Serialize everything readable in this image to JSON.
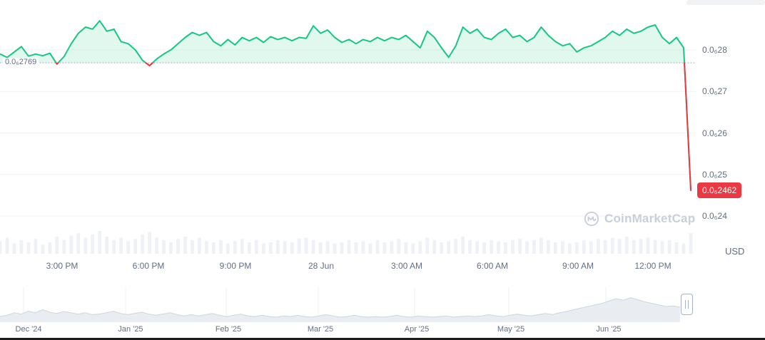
{
  "watermark": {
    "label": "CoinMarketCap"
  },
  "currency_label": "USD",
  "chart_data": {
    "type": "line",
    "title": "",
    "unit_note": "price values in 1e-8 USD (0.0₆28 = 0.00000028)",
    "legend": "off",
    "grid": "on",
    "colors": {
      "up": "#16c784",
      "down": "#ea3943",
      "area": "rgba(22,199,132,0.13)",
      "grid": "#f0f2f6",
      "axis_text": "#616e85",
      "volume": "#eef1f5",
      "nav_fill": "#e9edf2",
      "nav_stroke": "#cdd5e0",
      "prev_close_line": "#9aa4b5"
    },
    "main": {
      "prev_close": {
        "value": 27.69,
        "label": "0.0₆2769"
      },
      "last_price": {
        "value": 24.62,
        "label": "0.0₆2462"
      },
      "ylim": [
        23.8,
        29.2
      ],
      "y_ticks": [
        {
          "value": 28,
          "label": "0.0₆28"
        },
        {
          "value": 27,
          "label": "0.0₆27"
        },
        {
          "value": 26,
          "label": "0.0₆26"
        },
        {
          "value": 25,
          "label": "0.0₆25"
        },
        {
          "value": 24,
          "label": "0.0₆24"
        }
      ],
      "x_ticks": [
        "3:00 PM",
        "6:00 PM",
        "9:00 PM",
        "28 Jun",
        "3:00 AM",
        "6:00 AM",
        "9:00 AM",
        "12:00 PM"
      ],
      "prices": [
        27.9,
        27.82,
        27.95,
        28.08,
        27.85,
        27.9,
        27.86,
        27.92,
        27.66,
        27.84,
        28.15,
        28.4,
        28.55,
        28.5,
        28.7,
        28.45,
        28.5,
        28.2,
        28.15,
        28.0,
        27.75,
        27.62,
        27.78,
        27.9,
        28.0,
        28.15,
        28.3,
        28.42,
        28.35,
        28.42,
        28.2,
        28.1,
        28.25,
        28.12,
        28.3,
        28.22,
        28.3,
        28.18,
        28.32,
        28.25,
        28.3,
        28.22,
        28.3,
        28.28,
        28.58,
        28.4,
        28.48,
        28.3,
        28.18,
        28.25,
        28.15,
        28.25,
        28.2,
        28.3,
        28.22,
        28.3,
        28.25,
        28.35,
        28.2,
        28.05,
        28.45,
        28.3,
        28.05,
        27.82,
        28.1,
        28.55,
        28.4,
        28.5,
        28.3,
        28.25,
        28.4,
        28.5,
        28.3,
        28.35,
        28.2,
        28.3,
        28.55,
        28.35,
        28.2,
        28.1,
        28.15,
        27.95,
        28.05,
        28.1,
        28.2,
        28.3,
        28.45,
        28.35,
        28.5,
        28.4,
        28.45,
        28.55,
        28.6,
        28.3,
        28.15,
        28.3,
        28.05,
        24.62
      ],
      "volume_rel": [
        0.55,
        0.7,
        0.45,
        0.6,
        0.5,
        0.65,
        0.4,
        0.5,
        0.75,
        0.6,
        0.8,
        0.9,
        0.7,
        0.85,
        1.0,
        0.75,
        0.6,
        0.7,
        0.55,
        0.65,
        0.85,
        0.95,
        0.7,
        0.6,
        0.5,
        0.65,
        0.75,
        0.6,
        0.7,
        0.55,
        0.5,
        0.6,
        0.45,
        0.55,
        0.65,
        0.5,
        0.6,
        0.45,
        0.5,
        0.6,
        0.55,
        0.5,
        0.65,
        0.7,
        0.6,
        0.5,
        0.55,
        0.45,
        0.5,
        0.6,
        0.5,
        0.55,
        0.45,
        0.6,
        0.5,
        0.55,
        0.65,
        0.5,
        0.45,
        0.55,
        0.7,
        0.6,
        0.5,
        0.55,
        0.65,
        0.75,
        0.6,
        0.55,
        0.5,
        0.6,
        0.55,
        0.5,
        0.6,
        0.65,
        0.55,
        0.6,
        0.7,
        0.6,
        0.5,
        0.55,
        0.45,
        0.5,
        0.6,
        0.55,
        0.65,
        0.6,
        0.7,
        0.65,
        0.75,
        0.6,
        0.65,
        0.7,
        0.6,
        0.55,
        0.6,
        0.5,
        0.45,
        0.9
      ]
    },
    "navigator": {
      "x_ticks": [
        "Dec '24",
        "Jan '25",
        "Feb '25",
        "Mar '25",
        "Apr '25",
        "May '25",
        "Jun '25"
      ],
      "values_rel": [
        0.18,
        0.22,
        0.3,
        0.26,
        0.35,
        0.3,
        0.4,
        0.32,
        0.28,
        0.34,
        0.3,
        0.26,
        0.3,
        0.24,
        0.26,
        0.3,
        0.35,
        0.28,
        0.24,
        0.28,
        0.32,
        0.26,
        0.22,
        0.26,
        0.3,
        0.24,
        0.2,
        0.24,
        0.2,
        0.24,
        0.28,
        0.22,
        0.18,
        0.22,
        0.26,
        0.2,
        0.18,
        0.22,
        0.18,
        0.16,
        0.2,
        0.18,
        0.22,
        0.18,
        0.16,
        0.2,
        0.24,
        0.2,
        0.16,
        0.18,
        0.22,
        0.18,
        0.16,
        0.18,
        0.16,
        0.18,
        0.22,
        0.18,
        0.16,
        0.2,
        0.18,
        0.16,
        0.18,
        0.2,
        0.16,
        0.18,
        0.2,
        0.18,
        0.2,
        0.24,
        0.2,
        0.18,
        0.22,
        0.26,
        0.22,
        0.2,
        0.24,
        0.28,
        0.24,
        0.3,
        0.34,
        0.4,
        0.45,
        0.5,
        0.55,
        0.6,
        0.68,
        0.75,
        0.7,
        0.78,
        0.72,
        0.65,
        0.6,
        0.55,
        0.5,
        0.52,
        0.48
      ]
    }
  }
}
